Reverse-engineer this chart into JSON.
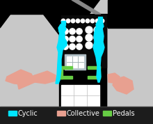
{
  "background_color": "#000000",
  "legend_bg": "#222222",
  "legend_items": [
    {
      "label": "Cyclic",
      "color": "#00e5ff"
    },
    {
      "label": "Collective",
      "color": "#e8a090"
    },
    {
      "label": "Pedals",
      "color": "#66cc44"
    }
  ],
  "legend_font_size": 7,
  "figsize": [
    2.2,
    1.78
  ],
  "dpi": 100,
  "cyan": "#00e5ff",
  "salmon": "#e8a090",
  "green": "#66cc44",
  "light_grey": "#c8c8c8",
  "dark_panel": "#111111",
  "white": "#ffffff"
}
